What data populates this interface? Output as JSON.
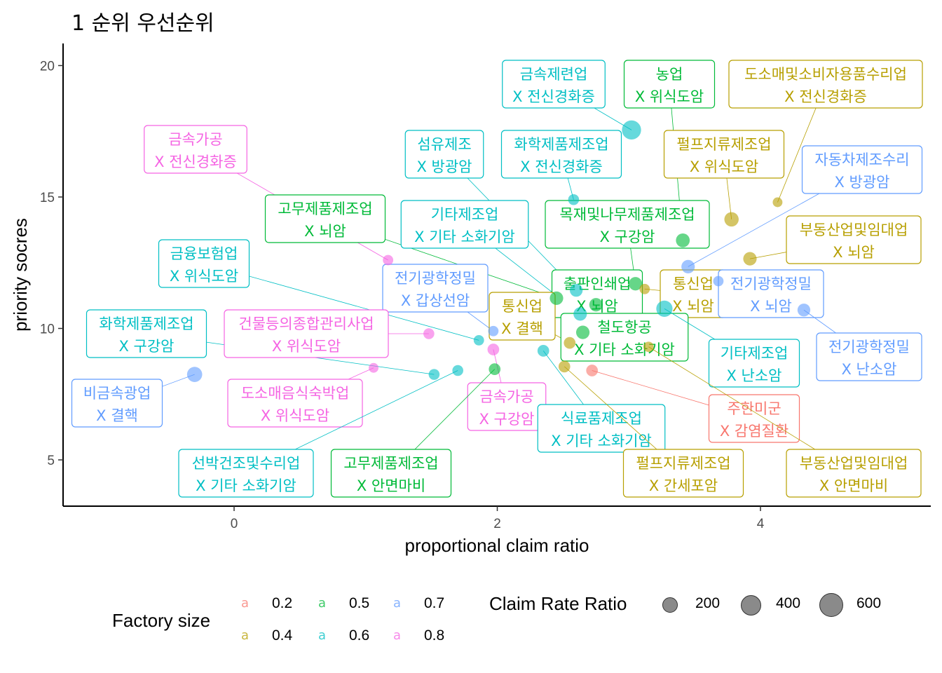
{
  "title": "1 순위 우선순위",
  "chart_data": {
    "type": "scatter",
    "title": "1 순위 우선순위",
    "xlabel": "proportional claim ratio",
    "ylabel": "priority socres",
    "xlim": [
      -1.3,
      5.25
    ],
    "ylim": [
      3.2,
      20.8
    ],
    "x_ticks": [
      0,
      2,
      4
    ],
    "y_ticks": [
      5,
      10,
      15,
      20
    ],
    "points": [
      {
        "industry": "금속제련업",
        "disease": "X 전신경화증",
        "x": 3.02,
        "y": 17.55,
        "size": 620,
        "factory_size": 0.6
      },
      {
        "industry": "농업",
        "disease": "X 위식도암",
        "x": 3.41,
        "y": 13.35,
        "size": 250,
        "factory_size": 0.5
      },
      {
        "industry": "도소매및소비자용품수리업",
        "disease": "X 전신경화증",
        "x": 4.13,
        "y": 14.8,
        "size": 80,
        "factory_size": 0.4
      },
      {
        "industry": "금속가공",
        "disease": "X 전신경화증",
        "x": 1.17,
        "y": 12.6,
        "size": 100,
        "factory_size": 0.8
      },
      {
        "industry": "섬유제조",
        "disease": "X 방광암",
        "x": 2.6,
        "y": 11.45,
        "size": 200,
        "factory_size": 0.6
      },
      {
        "industry": "화학제품제조업",
        "disease": "X 전신경화증",
        "x": 2.58,
        "y": 14.9,
        "size": 120,
        "factory_size": 0.6
      },
      {
        "industry": "펄프지류제조업",
        "disease": "X 위식도암",
        "x": 3.78,
        "y": 14.15,
        "size": 280,
        "factory_size": 0.4
      },
      {
        "industry": "자동차제조수리",
        "disease": "X 방광암",
        "x": 3.45,
        "y": 12.35,
        "size": 230,
        "factory_size": 0.7
      },
      {
        "industry": "고무제품제조업",
        "disease": "X 뇌암",
        "x": 2.45,
        "y": 11.15,
        "size": 230,
        "factory_size": 0.5
      },
      {
        "industry": "기타제조업",
        "disease": "X 기타 소화기암",
        "x": 2.63,
        "y": 10.55,
        "size": 230,
        "factory_size": 0.6
      },
      {
        "industry": "목재및나무제품제조업",
        "disease": "X 구강암",
        "x": 3.05,
        "y": 11.7,
        "size": 230,
        "factory_size": 0.5
      },
      {
        "industry": "부동산업및임대업",
        "disease": "X 뇌암",
        "x": 3.92,
        "y": 12.65,
        "size": 230,
        "factory_size": 0.4
      },
      {
        "industry": "금융보험업",
        "disease": "X 위식도암",
        "x": 1.86,
        "y": 9.55,
        "size": 100,
        "factory_size": 0.6
      },
      {
        "industry": "전기광학정밀",
        "disease": "X 갑상선암",
        "x": 1.97,
        "y": 9.9,
        "size": 100,
        "factory_size": 0.7
      },
      {
        "industry": "출판인쇄업",
        "disease": "X 뇌암",
        "x": 2.75,
        "y": 10.9,
        "size": 230,
        "factory_size": 0.5
      },
      {
        "industry": "통신업",
        "disease": "X 뇌암",
        "x": 3.12,
        "y": 11.5,
        "size": 100,
        "factory_size": 0.4
      },
      {
        "industry": "전기광학정밀",
        "disease": "X 뇌암",
        "x": 3.68,
        "y": 11.8,
        "size": 100,
        "factory_size": 0.7
      },
      {
        "industry": "통신업",
        "disease": "X 결핵",
        "x": 2.55,
        "y": 9.45,
        "size": 150,
        "factory_size": 0.4
      },
      {
        "industry": "철도항공",
        "disease": "X 기타 소화기암",
        "x": 2.65,
        "y": 9.85,
        "size": 230,
        "factory_size": 0.5
      },
      {
        "industry": "화학제품제조업",
        "disease": "X 구강암",
        "x": 1.52,
        "y": 8.25,
        "size": 120,
        "factory_size": 0.6
      },
      {
        "industry": "건물등의종합관리사업",
        "disease": "X 위식도암",
        "x": 1.48,
        "y": 9.8,
        "size": 120,
        "factory_size": 0.8
      },
      {
        "industry": "기타제조업",
        "disease": "X 난소암",
        "x": 3.27,
        "y": 10.75,
        "size": 400,
        "factory_size": 0.6
      },
      {
        "industry": "전기광학정밀",
        "disease": "X 난소암",
        "x": 4.33,
        "y": 10.7,
        "size": 200,
        "factory_size": 0.7
      },
      {
        "industry": "비금속광업",
        "disease": "X 결핵",
        "x": -0.3,
        "y": 8.25,
        "size": 330,
        "factory_size": 0.7
      },
      {
        "industry": "도소매음식숙박업",
        "disease": "X 위식도암",
        "x": 1.06,
        "y": 8.5,
        "size": 80,
        "factory_size": 0.8
      },
      {
        "industry": "금속가공",
        "disease": "X 구강암",
        "x": 1.97,
        "y": 9.2,
        "size": 150,
        "factory_size": 0.8
      },
      {
        "industry": "주한미군",
        "disease": "X 감염질환",
        "x": 2.72,
        "y": 8.4,
        "size": 150,
        "factory_size": 0.2
      },
      {
        "industry": "선박건조및수리업",
        "disease": "X 기타 소화기암",
        "x": 1.7,
        "y": 8.4,
        "size": 120,
        "factory_size": 0.6
      },
      {
        "industry": "고무제품제조업",
        "disease": "X 안면마비",
        "x": 1.98,
        "y": 8.45,
        "size": 150,
        "factory_size": 0.5
      },
      {
        "industry": "식료품제조업",
        "disease": "X 기타 소화기암",
        "x": 2.35,
        "y": 9.15,
        "size": 150,
        "factory_size": 0.6
      },
      {
        "industry": "펄프지류제조업",
        "disease": "X 간세포암",
        "x": 2.51,
        "y": 8.55,
        "size": 150,
        "factory_size": 0.4
      },
      {
        "industry": "부동산업및임대업",
        "disease": "X 안면마비",
        "x": 3.15,
        "y": 9.3,
        "size": 100,
        "factory_size": 0.4
      }
    ],
    "legend": {
      "color_title": "Factory size",
      "color_key_glyph": "a",
      "color_items": [
        {
          "label": "0.2",
          "value": 0.2,
          "color": "#F8766D"
        },
        {
          "label": "0.4",
          "value": 0.4,
          "color": "#B79F00"
        },
        {
          "label": "0.5",
          "value": 0.5,
          "color": "#00BA38"
        },
        {
          "label": "0.6",
          "value": 0.6,
          "color": "#00BFC4"
        },
        {
          "label": "0.7",
          "value": 0.7,
          "color": "#619CFF"
        },
        {
          "label": "0.8",
          "value": 0.8,
          "color": "#F564E3"
        }
      ],
      "size_title": "Claim Rate Ratio",
      "size_items": [
        {
          "label": "200",
          "value": 200
        },
        {
          "label": "400",
          "value": 400
        },
        {
          "label": "600",
          "value": 600
        }
      ],
      "position": "bottom"
    }
  }
}
